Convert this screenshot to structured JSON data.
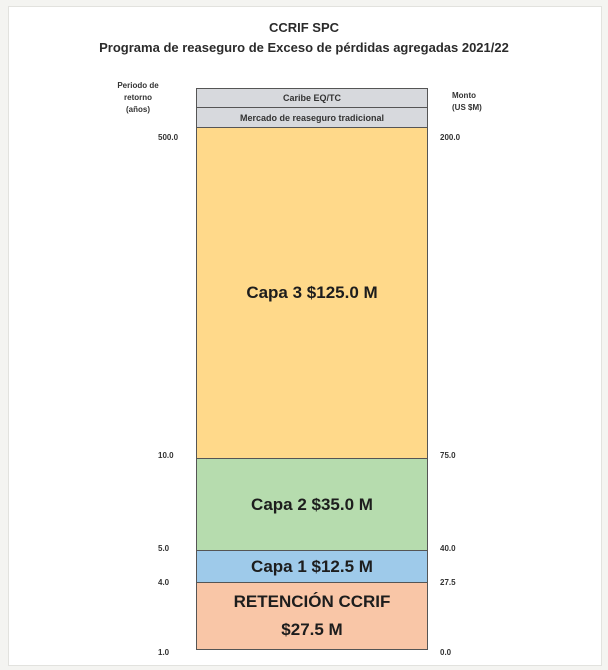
{
  "title": "CCRIF SPC",
  "subtitle": "Programa de reaseguro de Exceso de pérdidas agregadas 2021/22",
  "left_axis_title_lines": [
    "Periodo de",
    "retorno",
    "(años)"
  ],
  "right_axis_title_lines": [
    "Monto",
    "(US $M)"
  ],
  "headers": [
    "Caribe EQ/TC",
    "Mercado de reaseguro tradicional"
  ],
  "layers": [
    {
      "label": "Capa 3 $125.0 M",
      "return_period_top": "500.0",
      "amount_top": "200.0",
      "color": "#ffd98a"
    },
    {
      "label": "Capa 2 $35.0 M",
      "return_period_top": "10.0",
      "amount_top": "75.0",
      "color": "#b6dcae"
    },
    {
      "label": "Capa 1 $12.5 M",
      "return_period_top": "5.0",
      "amount_top": "40.0",
      "color": "#9ecaea"
    },
    {
      "label": "RETENCIÓN CCRIF",
      "label2": "$27.5 M",
      "return_period_top": "4.0",
      "amount_top": "27.5",
      "color": "#f9c6a7"
    }
  ],
  "bottom": {
    "return_period": "1.0",
    "amount": "0.0"
  }
}
